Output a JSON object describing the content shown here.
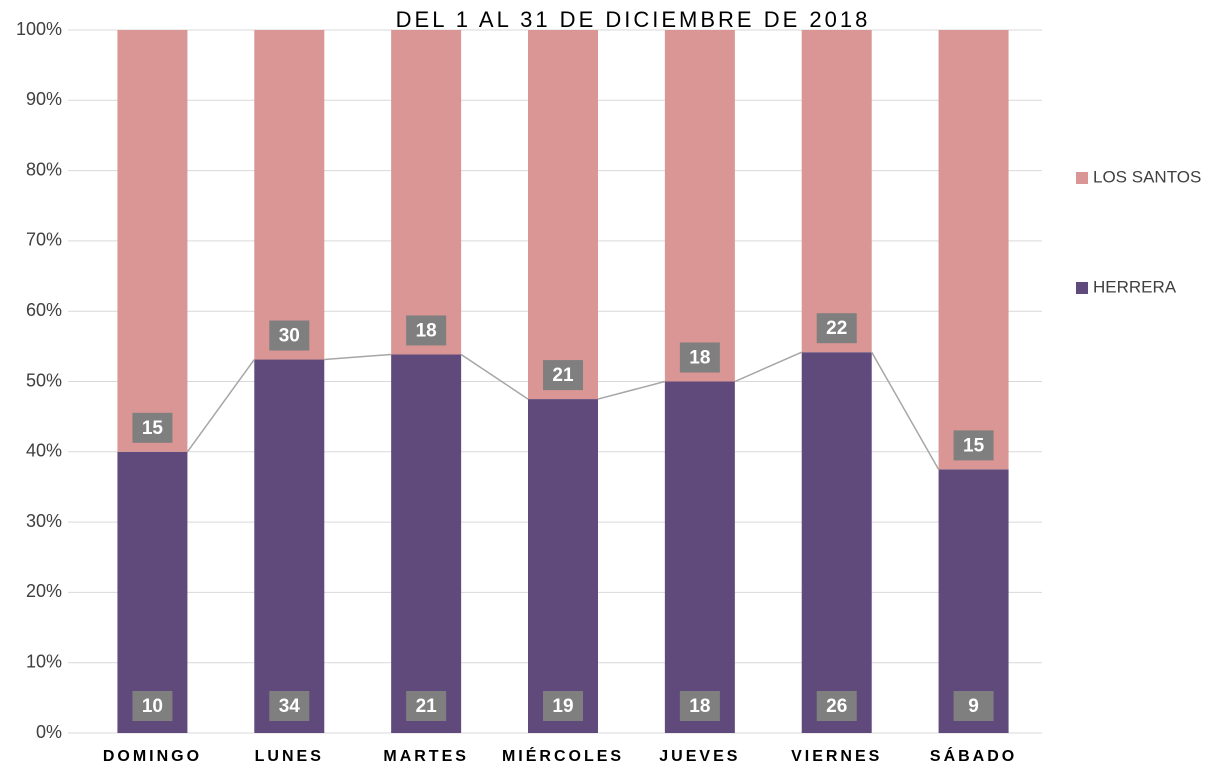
{
  "chart_data": {
    "type": "bar",
    "stacking": "percent",
    "title": "DEL 1 AL 31 DE DICIEMBRE DE 2018",
    "categories": [
      "DOMINGO",
      "LUNES",
      "MARTES",
      "MIÉRCOLES",
      "JUEVES",
      "VIERNES",
      "SÁBADO"
    ],
    "series": [
      {
        "name": "HERRERA",
        "color": "#604a7b",
        "values": [
          10,
          34,
          21,
          19,
          18,
          26,
          9
        ]
      },
      {
        "name": "LOS SANTOS",
        "color": "#d99694",
        "values": [
          15,
          30,
          18,
          21,
          18,
          22,
          15
        ]
      }
    ],
    "ylim": [
      0,
      100
    ],
    "yticks": [
      {
        "value": 0,
        "label": "0%"
      },
      {
        "value": 10,
        "label": "10%"
      },
      {
        "value": 20,
        "label": "20%"
      },
      {
        "value": 30,
        "label": "30%"
      },
      {
        "value": 40,
        "label": "40%"
      },
      {
        "value": 50,
        "label": "50%"
      },
      {
        "value": 60,
        "label": "60%"
      },
      {
        "value": 70,
        "label": "70%"
      },
      {
        "value": 80,
        "label": "80%"
      },
      {
        "value": 90,
        "label": "90%"
      },
      {
        "value": 100,
        "label": "100%"
      }
    ],
    "grid": true,
    "series_lines": true,
    "legend": "right"
  }
}
